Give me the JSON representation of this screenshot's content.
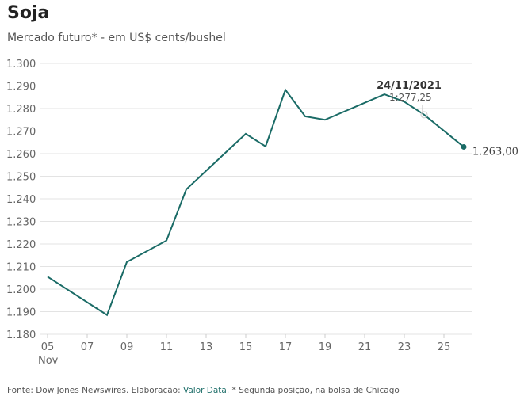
{
  "chart_data": {
    "type": "line",
    "title": "Soja",
    "subtitle": "Mercado futuro* - em US$ cents/bushel",
    "x_day": [
      5,
      8,
      9,
      11,
      12,
      15,
      16,
      17,
      18,
      19,
      22,
      23,
      24,
      26
    ],
    "values": [
      1205.5,
      1188.5,
      1212,
      1221.5,
      1244.2,
      1268.8,
      1263.2,
      1288.3,
      1276.5,
      1275,
      1286.3,
      1283,
      1277.25,
      1263
    ],
    "ylim": [
      1180,
      1300
    ],
    "yticks": [
      "1.180",
      "1.190",
      "1.200",
      "1.210",
      "1.220",
      "1.230",
      "1.240",
      "1.250",
      "1.260",
      "1.270",
      "1.280",
      "1.290",
      "1.300"
    ],
    "xticks": [
      "05",
      "07",
      "09",
      "11",
      "13",
      "15",
      "17",
      "19",
      "21",
      "23",
      "25"
    ],
    "xtick_sub": "Nov",
    "last_label": "1.263,00",
    "tooltip": {
      "date": "24/11/2021",
      "value": "1:277,25"
    },
    "color": "#1a6b66",
    "grid": true
  },
  "footer": {
    "source": "Fonte: Dow Jones Newswires. Elaboração: ",
    "link": "Valor Data.",
    "note": " * Segunda posição, na bolsa de Chicago"
  }
}
